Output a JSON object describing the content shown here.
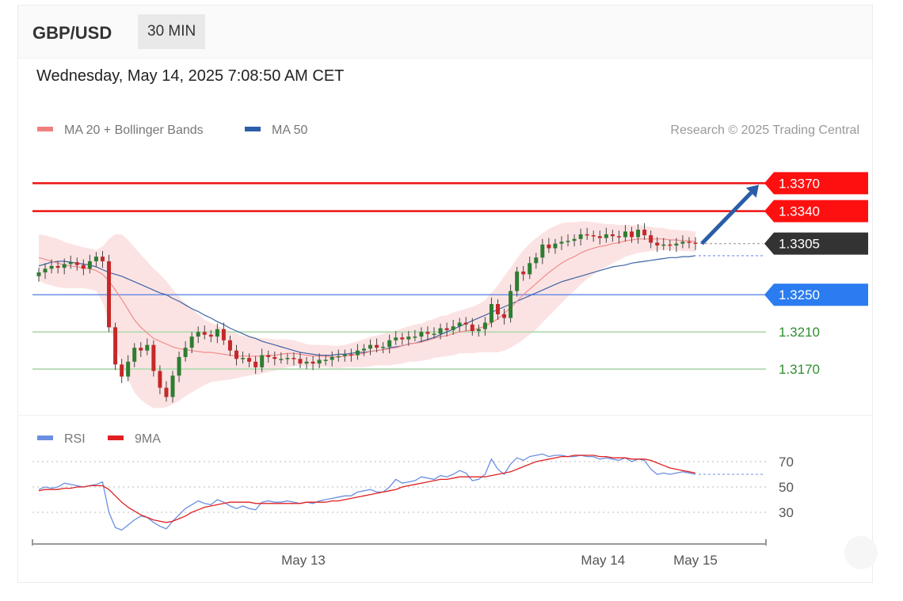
{
  "header": {
    "symbol": "GBP/USD",
    "timeframe": "30 MIN"
  },
  "datetime": "Wednesday, May 14, 2025 7:08:50 AM CET",
  "legend": {
    "ma20": {
      "label": "MA 20 + Bollinger Bands",
      "color": "#f07f7f"
    },
    "ma50": {
      "label": "MA 50",
      "color": "#2e5da8"
    },
    "copyright": "Research © 2025 Trading Central"
  },
  "rsi_legend": {
    "rsi": {
      "label": "RSI",
      "color": "#6b8fe0"
    },
    "ma9": {
      "label": "9MA",
      "color": "#e02020"
    }
  },
  "chart_data": [
    {
      "type": "candlestick",
      "ylim": [
        1.3125,
        1.3395
      ],
      "x_ticks": [
        {
          "label": "May 13",
          "index": 41.5
        },
        {
          "label": "May 14",
          "index": 88.5
        },
        {
          "label": "May 15",
          "index": 103
        }
      ],
      "levels": [
        {
          "value": 1.337,
          "label": "1.3370",
          "kind": "resistance",
          "color": "#ee1111"
        },
        {
          "value": 1.334,
          "label": "1.3340",
          "kind": "resistance",
          "color": "#ee1111"
        },
        {
          "value": 1.3305,
          "label": "1.3305",
          "kind": "last",
          "color": "#333333"
        },
        {
          "value": 1.325,
          "label": "1.3250",
          "kind": "pivot",
          "color": "#2b7cf0"
        },
        {
          "value": 1.321,
          "label": "1.3210",
          "kind": "support",
          "color": "#2f8f2f"
        },
        {
          "value": 1.317,
          "label": "1.3170",
          "kind": "support",
          "color": "#2f8f2f"
        }
      ],
      "close": [
        1.3274,
        1.3278,
        1.3281,
        1.3279,
        1.3283,
        1.3285,
        1.3282,
        1.3278,
        1.3286,
        1.3291,
        1.3286,
        1.3215,
        1.3175,
        1.3162,
        1.3178,
        1.3193,
        1.319,
        1.3196,
        1.3168,
        1.315,
        1.314,
        1.3163,
        1.3183,
        1.3193,
        1.3205,
        1.321,
        1.3207,
        1.3205,
        1.3213,
        1.3201,
        1.319,
        1.3181,
        1.3182,
        1.3178,
        1.3172,
        1.3185,
        1.3183,
        1.3181,
        1.3181,
        1.3182,
        1.3181,
        1.3176,
        1.3178,
        1.3176,
        1.318,
        1.318,
        1.3183,
        1.3184,
        1.3186,
        1.3185,
        1.319,
        1.3192,
        1.3196,
        1.3193,
        1.3194,
        1.3201,
        1.3204,
        1.3202,
        1.3205,
        1.3205,
        1.321,
        1.3208,
        1.3208,
        1.3214,
        1.3212,
        1.3216,
        1.322,
        1.3218,
        1.3211,
        1.3213,
        1.322,
        1.324,
        1.3229,
        1.3225,
        1.3254,
        1.3275,
        1.3272,
        1.3284,
        1.329,
        1.3304,
        1.33,
        1.3305,
        1.3307,
        1.3308,
        1.331,
        1.3315,
        1.3314,
        1.3313,
        1.3311,
        1.3315,
        1.3313,
        1.3312,
        1.3318,
        1.3312,
        1.332,
        1.3314,
        1.3306,
        1.3303,
        1.3304,
        1.3303,
        1.3305,
        1.3307,
        1.3306,
        1.3305
      ],
      "ma20": [
        1.329,
        1.3288,
        1.3286,
        1.3284,
        1.3282,
        1.3281,
        1.328,
        1.3279,
        1.3278,
        1.3276,
        1.3272,
        1.3265,
        1.3255,
        1.3245,
        1.3234,
        1.3223,
        1.3215,
        1.3209,
        1.3203,
        1.32,
        1.3197,
        1.3194,
        1.3192,
        1.3191,
        1.319,
        1.3189,
        1.3188,
        1.3188,
        1.3187,
        1.3186,
        1.3185,
        1.3184,
        1.3184,
        1.3184,
        1.3184,
        1.3184,
        1.3185,
        1.3185,
        1.3186,
        1.3187,
        1.3187,
        1.3186,
        1.3185,
        1.3184,
        1.3184,
        1.3184,
        1.3183,
        1.3183,
        1.3184,
        1.3185,
        1.3186,
        1.3187,
        1.3189,
        1.319,
        1.3191,
        1.3192,
        1.3193,
        1.3195,
        1.3197,
        1.3198,
        1.3199,
        1.3201,
        1.3203,
        1.3205,
        1.3206,
        1.3208,
        1.321,
        1.3211,
        1.3212,
        1.3214,
        1.3216,
        1.322,
        1.3224,
        1.323,
        1.3236,
        1.3243,
        1.325,
        1.3256,
        1.3262,
        1.3268,
        1.3274,
        1.3279,
        1.3284,
        1.3288,
        1.3291,
        1.3295,
        1.3298,
        1.33,
        1.3302,
        1.3303,
        1.3305,
        1.3306,
        1.3308,
        1.3309,
        1.331,
        1.331,
        1.331,
        1.331,
        1.331,
        1.3309,
        1.3309,
        1.3308,
        1.3308,
        1.3307
      ],
      "ma50": [
        1.3281,
        1.3283,
        1.3285,
        1.3286,
        1.3286,
        1.3285,
        1.3284,
        1.3283,
        1.3282,
        1.328,
        1.3277,
        1.3274,
        1.3272,
        1.327,
        1.3267,
        1.3264,
        1.3261,
        1.3258,
        1.3255,
        1.3252,
        1.325,
        1.3246,
        1.3243,
        1.3239,
        1.3235,
        1.3232,
        1.3228,
        1.3225,
        1.3221,
        1.3218,
        1.3214,
        1.3211,
        1.3208,
        1.3205,
        1.3203,
        1.32,
        1.3198,
        1.3196,
        1.3194,
        1.3192,
        1.319,
        1.3188,
        1.3187,
        1.3186,
        1.3185,
        1.3185,
        1.3185,
        1.3186,
        1.3186,
        1.3187,
        1.3188,
        1.3188,
        1.3189,
        1.319,
        1.3191,
        1.3193,
        1.3194,
        1.3195,
        1.3197,
        1.3198,
        1.32,
        1.3202,
        1.3204,
        1.3207,
        1.321,
        1.3213,
        1.3216,
        1.3219,
        1.3222,
        1.3225,
        1.3228,
        1.3231,
        1.3234,
        1.3237,
        1.324,
        1.3243,
        1.3246,
        1.3249,
        1.3252,
        1.3255,
        1.3258,
        1.3261,
        1.3264,
        1.3266,
        1.3268,
        1.327,
        1.3272,
        1.3274,
        1.3276,
        1.3278,
        1.328,
        1.3281,
        1.3282,
        1.3284,
        1.3285,
        1.3286,
        1.3287,
        1.3288,
        1.3289,
        1.329,
        1.329,
        1.3291,
        1.3291,
        1.3292
      ],
      "bb_width": [
        0.0025,
        0.0026,
        0.0026,
        0.0026,
        0.0025,
        0.0024,
        0.0023,
        0.0022,
        0.0022,
        0.0022,
        0.003,
        0.0045,
        0.006,
        0.007,
        0.0075,
        0.0078,
        0.0078,
        0.0077,
        0.0075,
        0.0072,
        0.0068,
        0.0062,
        0.0056,
        0.005,
        0.0045,
        0.004,
        0.0035,
        0.0032,
        0.003,
        0.0028,
        0.0026,
        0.0024,
        0.0022,
        0.0021,
        0.002,
        0.0019,
        0.0018,
        0.0017,
        0.0016,
        0.0015,
        0.0014,
        0.0013,
        0.0012,
        0.0012,
        0.0012,
        0.0012,
        0.0012,
        0.0012,
        0.0012,
        0.0013,
        0.0014,
        0.0015,
        0.0016,
        0.0016,
        0.0017,
        0.0018,
        0.0018,
        0.0019,
        0.0019,
        0.002,
        0.002,
        0.0021,
        0.0021,
        0.0022,
        0.0022,
        0.0023,
        0.0023,
        0.0024,
        0.0025,
        0.0026,
        0.0028,
        0.0032,
        0.0036,
        0.004,
        0.0043,
        0.0046,
        0.0048,
        0.0049,
        0.0049,
        0.0048,
        0.0047,
        0.0045,
        0.0043,
        0.004,
        0.0037,
        0.0034,
        0.0031,
        0.0028,
        0.0025,
        0.0023,
        0.0021,
        0.0019,
        0.0017,
        0.0016,
        0.0015,
        0.0014,
        0.0013,
        0.0012,
        0.0012,
        0.0011,
        0.0011,
        0.0011,
        0.0011,
        0.0011
      ],
      "forecast": {
        "from": 1.3305,
        "to": 1.337
      }
    },
    {
      "type": "line",
      "ylim": [
        10,
        80
      ],
      "y_ticks": [
        "70",
        "50",
        "30"
      ],
      "y_tick_values": [
        70,
        50,
        30
      ],
      "last_value": 60,
      "series": [
        {
          "name": "RSI",
          "values": [
            48,
            50,
            49,
            50,
            53,
            52,
            51,
            50,
            51,
            52,
            54,
            30,
            18,
            16,
            20,
            24,
            27,
            26,
            22,
            19,
            17,
            23,
            28,
            33,
            36,
            39,
            37,
            36,
            40,
            38,
            35,
            33,
            35,
            33,
            32,
            38,
            39,
            38,
            38,
            39,
            38,
            37,
            38,
            37,
            39,
            40,
            41,
            42,
            43,
            43,
            46,
            47,
            48,
            46,
            46,
            50,
            56,
            53,
            54,
            55,
            58,
            57,
            56,
            59,
            58,
            60,
            63,
            61,
            55,
            56,
            60,
            72,
            64,
            60,
            68,
            73,
            71,
            74,
            75,
            76,
            74,
            75,
            75,
            74,
            74,
            75,
            74,
            74,
            72,
            73,
            72,
            71,
            73,
            70,
            72,
            71,
            64,
            60,
            61,
            60,
            61,
            62,
            61,
            60
          ]
        },
        {
          "name": "9MA",
          "values": [
            47,
            48,
            48,
            48,
            49,
            49,
            50,
            50,
            51,
            51,
            51,
            48,
            43,
            38,
            34,
            31,
            28,
            26,
            24,
            23,
            22,
            23,
            25,
            27,
            30,
            32,
            34,
            35,
            36,
            37,
            38,
            38,
            38,
            38,
            37,
            37,
            37,
            37,
            37,
            37,
            37,
            37,
            38,
            38,
            38,
            38,
            39,
            39,
            40,
            41,
            42,
            43,
            44,
            45,
            46,
            47,
            48,
            50,
            51,
            52,
            53,
            54,
            55,
            56,
            56,
            57,
            58,
            58,
            58,
            58,
            58,
            59,
            60,
            61,
            62,
            64,
            66,
            68,
            70,
            71,
            72,
            73,
            74,
            74,
            75,
            75,
            75,
            75,
            74,
            74,
            73,
            73,
            73,
            72,
            72,
            72,
            71,
            69,
            67,
            65,
            64,
            63,
            62,
            61
          ]
        }
      ]
    }
  ]
}
